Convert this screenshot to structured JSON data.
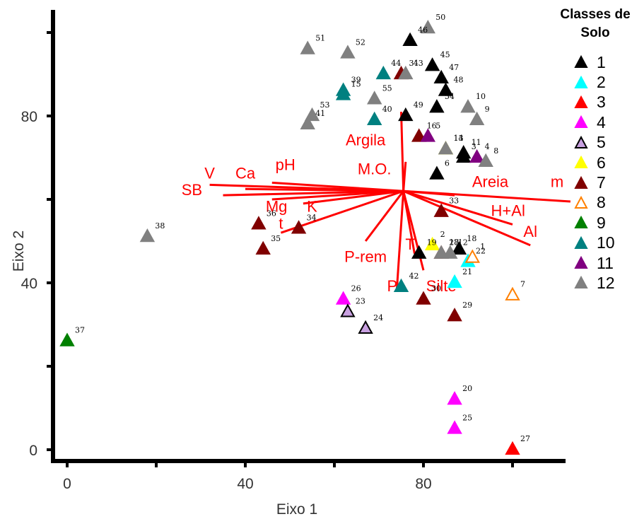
{
  "chart_data": {
    "type": "scatter",
    "xlabel": "Eixo 1",
    "ylabel": "Eixo 2",
    "xlim": [
      -3,
      113
    ],
    "ylim": [
      -3,
      107
    ],
    "xticks": [
      0,
      40,
      80
    ],
    "yticks": [
      0,
      40,
      80
    ],
    "legend_title_lines": [
      "Classes de",
      "Solo"
    ],
    "legend_position": "right",
    "series": [
      {
        "name": "1",
        "color": "#000000",
        "edge": "#000000",
        "points": [
          {
            "id": "3",
            "x": 89,
            "y": 70
          },
          {
            "id": "6",
            "x": 83,
            "y": 66
          },
          {
            "id": "11",
            "x": 89,
            "y": 71
          },
          {
            "id": "18",
            "x": 88,
            "y": 48
          },
          {
            "id": "19",
            "x": 79,
            "y": 47
          },
          {
            "id": "45",
            "x": 82,
            "y": 92
          },
          {
            "id": "46",
            "x": 77,
            "y": 98
          },
          {
            "id": "47",
            "x": 84,
            "y": 89
          },
          {
            "id": "48",
            "x": 85,
            "y": 86
          },
          {
            "id": "49",
            "x": 76,
            "y": 80
          },
          {
            "id": "54",
            "x": 83,
            "y": 82
          }
        ]
      },
      {
        "name": "2",
        "color": "#00ffff",
        "edge": "#00ffff",
        "points": [
          {
            "id": "21",
            "x": 87,
            "y": 40
          },
          {
            "id": "22",
            "x": 90,
            "y": 45
          }
        ]
      },
      {
        "name": "3",
        "color": "#ff0000",
        "edge": "#ff0000",
        "points": [
          {
            "id": "27",
            "x": 100,
            "y": 0
          }
        ]
      },
      {
        "name": "4",
        "color": "#ff00ff",
        "edge": "#ff00ff",
        "points": [
          {
            "id": "20",
            "x": 87,
            "y": 12
          },
          {
            "id": "25",
            "x": 87,
            "y": 5
          },
          {
            "id": "26",
            "x": 62,
            "y": 36
          }
        ]
      },
      {
        "name": "5",
        "color": "#c8a0e0",
        "edge": "#000000",
        "points": [
          {
            "id": "23",
            "x": 63,
            "y": 33
          },
          {
            "id": "24",
            "x": 67,
            "y": 29
          }
        ]
      },
      {
        "name": "6",
        "color": "#ffff00",
        "edge": "#ffff00",
        "points": [
          {
            "id": "2",
            "x": 82,
            "y": 49
          },
          {
            "id": "14",
            "x": 85,
            "y": 72
          }
        ]
      },
      {
        "name": "7",
        "color": "#800000",
        "edge": "#800000",
        "points": [
          {
            "id": "16",
            "x": 79,
            "y": 75
          },
          {
            "id": "17",
            "x": 84,
            "y": 47
          },
          {
            "id": "29",
            "x": 87,
            "y": 32
          },
          {
            "id": "30",
            "x": 80,
            "y": 36
          },
          {
            "id": "31",
            "x": 75,
            "y": 90
          },
          {
            "id": "33",
            "x": 84,
            "y": 57
          },
          {
            "id": "34",
            "x": 52,
            "y": 53
          },
          {
            "id": "35",
            "x": 44,
            "y": 48
          },
          {
            "id": "36",
            "x": 43,
            "y": 54
          }
        ]
      },
      {
        "name": "8",
        "color": "#ffffff",
        "edge": "#ff8000",
        "points": [
          {
            "id": "1",
            "x": 91,
            "y": 46
          },
          {
            "id": "7",
            "x": 100,
            "y": 37
          }
        ]
      },
      {
        "name": "9",
        "color": "#008000",
        "edge": "#008000",
        "points": [
          {
            "id": "37",
            "x": 0,
            "y": 26
          }
        ]
      },
      {
        "name": "10",
        "color": "#008080",
        "edge": "#008080",
        "points": [
          {
            "id": "15",
            "x": 62,
            "y": 85
          },
          {
            "id": "39",
            "x": 62,
            "y": 86
          },
          {
            "id": "40",
            "x": 69,
            "y": 79
          },
          {
            "id": "42",
            "x": 75,
            "y": 39
          },
          {
            "id": "44",
            "x": 71,
            "y": 90
          }
        ]
      },
      {
        "name": "11",
        "color": "#800080",
        "edge": "#800080",
        "points": [
          {
            "id": "4",
            "x": 92,
            "y": 70
          },
          {
            "id": "5",
            "x": 81,
            "y": 75
          }
        ]
      },
      {
        "name": "12",
        "color": "#808080",
        "edge": "#808080",
        "points": [
          {
            "id": "8",
            "x": 94,
            "y": 69
          },
          {
            "id": "9",
            "x": 92,
            "y": 79
          },
          {
            "id": "10",
            "x": 90,
            "y": 82
          },
          {
            "id": "12",
            "x": 86,
            "y": 47
          },
          {
            "id": "13",
            "x": 85,
            "y": 72
          },
          {
            "id": "28",
            "x": 84,
            "y": 47
          },
          {
            "id": "38",
            "x": 18,
            "y": 51
          },
          {
            "id": "41",
            "x": 54,
            "y": 78
          },
          {
            "id": "43",
            "x": 76,
            "y": 90
          },
          {
            "id": "50",
            "x": 81,
            "y": 101
          },
          {
            "id": "51",
            "x": 54,
            "y": 96
          },
          {
            "id": "52",
            "x": 63,
            "y": 95
          },
          {
            "id": "53",
            "x": 55,
            "y": 80
          },
          {
            "id": "55",
            "x": 69,
            "y": 84
          }
        ]
      }
    ],
    "vectors": {
      "origin": [
        75.5,
        62
      ],
      "color": "#ff0000",
      "items": [
        {
          "name": "V",
          "x2": 32,
          "y2": 63.5,
          "lx": 32,
          "ly": 65
        },
        {
          "name": "Ca",
          "x2": 40,
          "y2": 62.5,
          "lx": 40,
          "ly": 65
        },
        {
          "name": "SB",
          "x2": 35,
          "y2": 61,
          "lx": 28,
          "ly": 61
        },
        {
          "name": "pH",
          "x2": 46,
          "y2": 64,
          "lx": 49,
          "ly": 67
        },
        {
          "name": "Mg",
          "x2": 46,
          "y2": 60,
          "lx": 47,
          "ly": 57
        },
        {
          "name": "K",
          "x2": 53,
          "y2": 59,
          "lx": 55,
          "ly": 57
        },
        {
          "name": "t",
          "x2": 48,
          "y2": 52,
          "lx": 48,
          "ly": 53
        },
        {
          "name": "Argila",
          "x2": 75,
          "y2": 81,
          "lx": 67,
          "ly": 73
        },
        {
          "name": "M.O.",
          "x2": 76,
          "y2": 69,
          "lx": 69,
          "ly": 66
        },
        {
          "name": "Areia",
          "x2": 87,
          "y2": 61,
          "lx": 95,
          "ly": 63
        },
        {
          "name": "m",
          "x2": 113,
          "y2": 59.5,
          "lx": 110,
          "ly": 63
        },
        {
          "name": "H+Al",
          "x2": 100,
          "y2": 54,
          "lx": 99,
          "ly": 56
        },
        {
          "name": "Al",
          "x2": 104,
          "y2": 49,
          "lx": 104,
          "ly": 51
        },
        {
          "name": "P-rem",
          "x2": 67,
          "y2": 50,
          "lx": 67,
          "ly": 45
        },
        {
          "name": "T",
          "x2": 78,
          "y2": 47,
          "lx": 77,
          "ly": 48
        },
        {
          "name": "P",
          "x2": 74,
          "y2": 38,
          "lx": 73,
          "ly": 38
        },
        {
          "name": "Silte",
          "x2": 80,
          "y2": 43,
          "lx": 84,
          "ly": 38
        }
      ]
    }
  }
}
